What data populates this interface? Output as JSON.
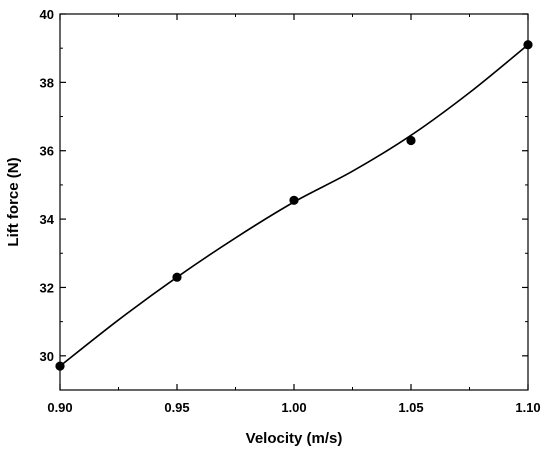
{
  "chart_data": {
    "type": "scatter",
    "title": "",
    "xlabel": "Velocity (m/s)",
    "ylabel": "Lift force (N)",
    "xlim": [
      0.9,
      1.1
    ],
    "ylim": [
      29,
      40
    ],
    "xticks": [
      0.9,
      0.95,
      1.0,
      1.05,
      1.1
    ],
    "xtick_labels": [
      "0.90",
      "0.95",
      "1.00",
      "1.05",
      "1.10"
    ],
    "yticks": [
      30,
      32,
      34,
      36,
      38,
      40
    ],
    "ytick_labels": [
      "30",
      "32",
      "34",
      "36",
      "38",
      "40"
    ],
    "grid": false,
    "series": [
      {
        "type": "scatter",
        "x": [
          0.9,
          0.95,
          1.0,
          1.05,
          1.1
        ],
        "y": [
          29.7,
          32.3,
          34.55,
          36.3,
          39.1
        ]
      },
      {
        "type": "line",
        "x": [
          0.9,
          0.925,
          0.95,
          0.975,
          1.0,
          1.025,
          1.05,
          1.075,
          1.1
        ],
        "y": [
          29.7,
          31.05,
          32.3,
          33.45,
          34.5,
          35.4,
          36.45,
          37.7,
          39.1
        ]
      }
    ],
    "colors": {
      "marker": "#000000",
      "line": "#000000",
      "axes": "#000000"
    }
  }
}
